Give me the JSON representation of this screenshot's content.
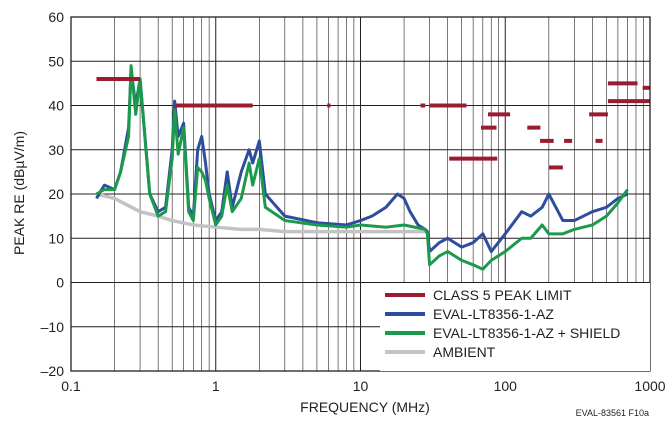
{
  "chart_data": {
    "type": "line",
    "xlabel": "FREQUENCY (MHz)",
    "ylabel": "PEAK RE (dBµV/m)",
    "x_scale": "log",
    "xlim": [
      0.1,
      1000
    ],
    "ylim": [
      -20,
      60
    ],
    "grid": true,
    "legend_position": "bottom-right",
    "footnote": "EVAL-83561 F10a",
    "x_ticks": [
      {
        "value": 0.1,
        "label": "0.1"
      },
      {
        "value": 1,
        "label": "1"
      },
      {
        "value": 10,
        "label": "10"
      },
      {
        "value": 100,
        "label": "100"
      },
      {
        "value": 1000,
        "label": "1000"
      }
    ],
    "y_ticks": [
      {
        "value": -20,
        "label": "–20"
      },
      {
        "value": -10,
        "label": "–10"
      },
      {
        "value": 0,
        "label": "0"
      },
      {
        "value": 10,
        "label": "10"
      },
      {
        "value": 20,
        "label": "20"
      },
      {
        "value": 30,
        "label": "30"
      },
      {
        "value": 40,
        "label": "40"
      },
      {
        "value": 50,
        "label": "50"
      },
      {
        "value": 60,
        "label": "60"
      }
    ],
    "limit": {
      "name": "CLASS 5 PEAK LIMIT",
      "color": "#9b1b30",
      "segments": [
        {
          "x": [
            0.15,
            0.3
          ],
          "y": 46
        },
        {
          "x": [
            0.53,
            1.8
          ],
          "y": 40
        },
        {
          "x": [
            5.9,
            6.2
          ],
          "y": 40
        },
        {
          "x": [
            26,
            28
          ],
          "y": 40
        },
        {
          "x": [
            30,
            54
          ],
          "y": 40
        },
        {
          "x": [
            41,
            88
          ],
          "y": 28
        },
        {
          "x": [
            68,
            87
          ],
          "y": 35
        },
        {
          "x": [
            76,
            108
          ],
          "y": 38
        },
        {
          "x": [
            142,
            175
          ],
          "y": 35
        },
        {
          "x": [
            174,
            216
          ],
          "y": 32
        },
        {
          "x": [
            200,
            250
          ],
          "y": 26
        },
        {
          "x": [
            255,
            290
          ],
          "y": 32
        },
        {
          "x": [
            380,
            512
          ],
          "y": 38
        },
        {
          "x": [
            420,
            470
          ],
          "y": 32
        },
        {
          "x": [
            512,
            1000
          ],
          "y": 41
        },
        {
          "x": [
            512,
            820
          ],
          "y": 45
        },
        {
          "x": [
            890,
            1000
          ],
          "y": 44
        }
      ]
    },
    "series": [
      {
        "name": "AMBIENT",
        "color": "#c3c3c3",
        "x": [
          0.15,
          0.2,
          0.3,
          0.4,
          0.5,
          0.7,
          1.0,
          1.5,
          2.0,
          3.0,
          5.0,
          10,
          20,
          28
        ],
        "y": [
          20,
          19,
          16,
          15,
          14,
          13,
          12.5,
          12,
          12,
          11.5,
          11.5,
          11.5,
          11.5,
          11.5
        ]
      },
      {
        "name": "EVAL-LT8356-1-AZ",
        "color": "#2e4d9e",
        "x": [
          0.15,
          0.17,
          0.2,
          0.22,
          0.25,
          0.26,
          0.28,
          0.3,
          0.35,
          0.4,
          0.45,
          0.5,
          0.52,
          0.55,
          0.6,
          0.65,
          0.7,
          0.75,
          0.8,
          0.85,
          0.9,
          1.0,
          1.1,
          1.2,
          1.3,
          1.5,
          1.7,
          1.8,
          2.0,
          2.2,
          3.0,
          5.0,
          8.0,
          10,
          12,
          15,
          18,
          20,
          22,
          25,
          28,
          29,
          30,
          35,
          40,
          50,
          60,
          70,
          80,
          100,
          130,
          150,
          180,
          200,
          250,
          300,
          400,
          500,
          600,
          700
        ],
        "y": [
          19,
          22,
          21,
          25,
          35,
          48,
          40,
          46,
          20,
          16,
          17,
          30,
          41,
          33,
          36,
          17,
          15,
          30,
          33,
          27,
          20,
          14,
          16,
          25,
          17,
          25,
          30,
          27,
          32,
          20,
          15,
          13.5,
          13,
          14,
          15,
          17,
          20,
          19,
          16,
          13,
          12,
          11.5,
          7,
          9,
          10,
          8,
          9,
          11,
          7,
          11,
          16,
          15,
          17,
          20,
          14,
          14,
          16,
          17,
          19,
          20
        ]
      },
      {
        "name": "EVAL-LT8356-1-AZ + SHIELD",
        "color": "#1a9a4a",
        "x": [
          0.15,
          0.17,
          0.2,
          0.22,
          0.25,
          0.26,
          0.28,
          0.3,
          0.35,
          0.4,
          0.45,
          0.5,
          0.52,
          0.55,
          0.6,
          0.65,
          0.7,
          0.75,
          0.8,
          0.85,
          0.9,
          1.0,
          1.1,
          1.2,
          1.3,
          1.5,
          1.7,
          1.8,
          2.0,
          2.2,
          3.0,
          5.0,
          8.0,
          10,
          15,
          20,
          28,
          29,
          30,
          35,
          40,
          50,
          60,
          70,
          80,
          100,
          130,
          150,
          180,
          200,
          250,
          300,
          400,
          500,
          600,
          700
        ],
        "y": [
          20,
          21,
          21,
          25,
          33,
          49,
          38,
          46,
          20,
          15,
          16,
          28,
          39,
          29,
          35,
          16,
          14,
          26,
          25,
          23,
          19,
          13,
          15,
          22,
          16,
          19,
          27,
          22,
          28,
          17,
          14,
          13,
          12.5,
          13,
          12.5,
          13,
          12,
          11,
          4,
          6,
          7,
          5,
          4,
          3,
          5,
          7,
          10,
          10,
          13,
          11,
          11,
          12,
          13,
          15,
          18,
          21
        ]
      }
    ]
  }
}
